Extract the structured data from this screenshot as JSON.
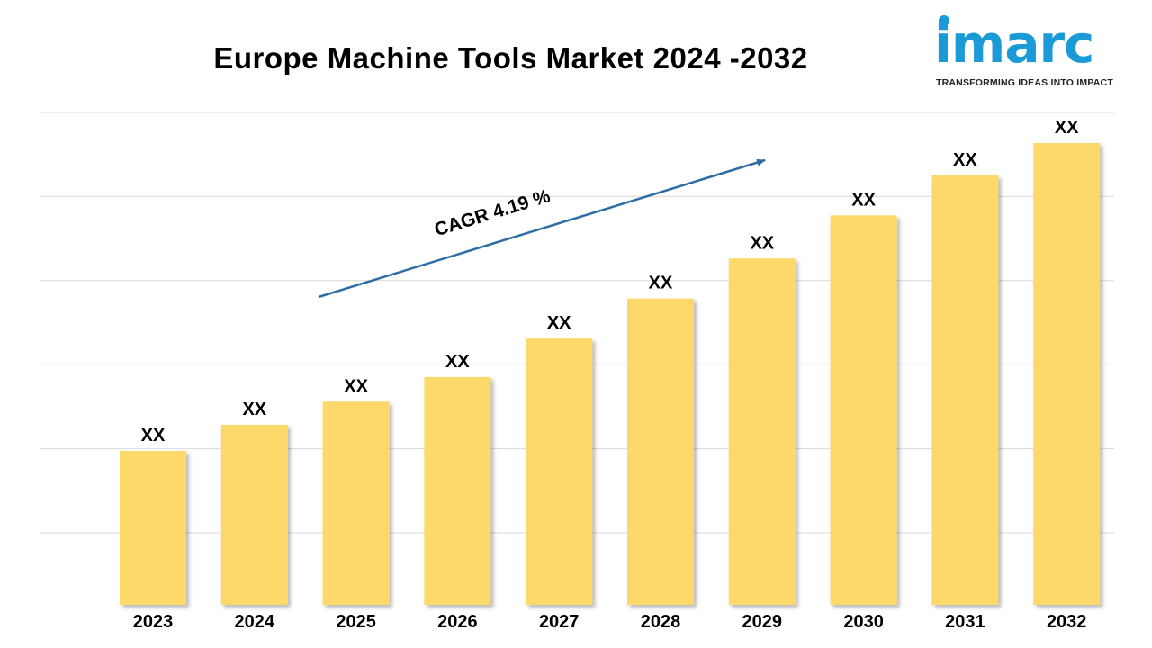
{
  "title": "Europe Machine Tools Market 2024 -2032",
  "logo": {
    "name": "imarc",
    "tagline": "TRANSFORMING IDEAS INTO IMPACT",
    "color": "#1a9ad6"
  },
  "chart_data": {
    "type": "bar",
    "categories": [
      "2023",
      "2024",
      "2025",
      "2026",
      "2027",
      "2028",
      "2029",
      "2030",
      "2031",
      "2032"
    ],
    "values": [
      1.0,
      1.17,
      1.32,
      1.48,
      1.73,
      1.99,
      2.25,
      2.53,
      2.79,
      3.0
    ],
    "data_labels": [
      "XX",
      "XX",
      "XX",
      "XX",
      "XX",
      "XX",
      "XX",
      "XX",
      "XX",
      "XX"
    ],
    "ylim": [
      0,
      3.2
    ],
    "grid": true,
    "legend": "none",
    "bar_color": "#fdd86b",
    "annotation": {
      "text": "CAGR 4.19 %",
      "arrow_color": "#2e6da4"
    }
  }
}
